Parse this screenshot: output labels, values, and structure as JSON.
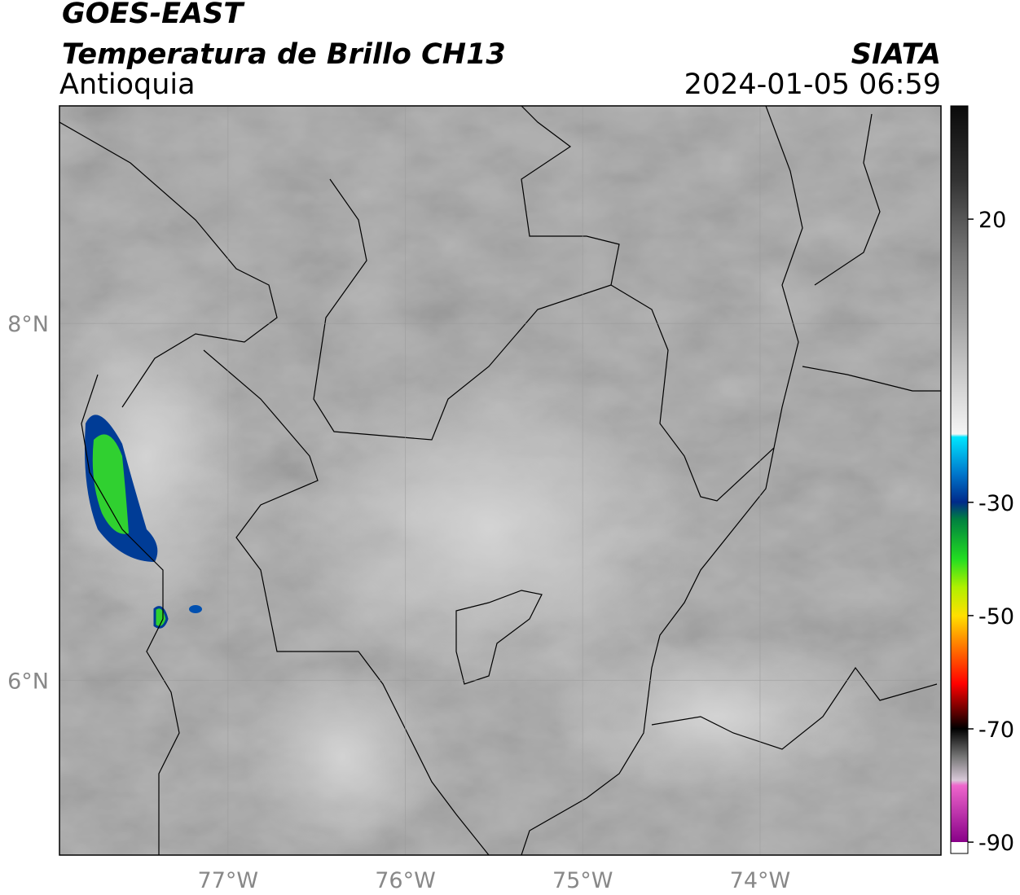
{
  "header": {
    "title": "GOES-EAST",
    "subtitle": "Temperatura de Brillo CH13",
    "region": "Antioquia",
    "source": "SIATA",
    "datetime": "2024-01-05 06:59"
  },
  "map": {
    "xlim": [
      -77.95,
      -72.98
    ],
    "ylim": [
      5.02,
      9.22
    ],
    "xticks": [
      {
        "value": -77,
        "label": "77°W"
      },
      {
        "value": -76,
        "label": "76°W"
      },
      {
        "value": -75,
        "label": "75°W"
      },
      {
        "value": -74,
        "label": "74°W"
      }
    ],
    "yticks": [
      {
        "value": 6,
        "label": "6°N"
      },
      {
        "value": 8,
        "label": "8°N"
      }
    ]
  },
  "colorbar": {
    "lim": [
      -92,
      40
    ],
    "ticks": [
      20,
      -30,
      -50,
      -70,
      -90
    ]
  }
}
